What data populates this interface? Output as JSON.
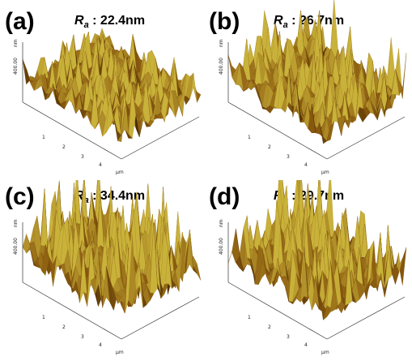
{
  "panels": [
    {
      "label": "(a)",
      "ra_symbol": "R",
      "ra_subscript": "a",
      "ra_value": ": 22.4nm",
      "z_axis_label": "400.00",
      "z_unit": "nm",
      "x_ticks": [
        "1",
        "2",
        "3",
        "4"
      ],
      "x_unit": "μm"
    },
    {
      "label": "(b)",
      "ra_symbol": "R",
      "ra_subscript": "a",
      "ra_value": ": 26.7nm",
      "z_axis_label": "400.00",
      "z_unit": "nm",
      "x_ticks": [
        "1",
        "2",
        "3",
        "4"
      ],
      "x_unit": "μm"
    },
    {
      "label": "(c)",
      "ra_symbol": "R",
      "ra_subscript": "a",
      "ra_value": ": 34.4nm",
      "z_axis_label": "400.00",
      "z_unit": "nm",
      "x_ticks": [
        "1",
        "2",
        "3",
        "4"
      ],
      "x_unit": "μm"
    },
    {
      "label": "(d)",
      "ra_symbol": "R",
      "ra_subscript": "a",
      "ra_value": ": 29.7nm",
      "z_axis_label": "400.00",
      "z_unit": "nm",
      "x_ticks": [
        "1",
        "2",
        "3",
        "4"
      ],
      "x_unit": "μm"
    }
  ],
  "colors": {
    "surface_dark": "#3d2305",
    "surface_mid": "#8a5a0e",
    "surface_light": "#c9b23a",
    "axis": "#333333"
  }
}
